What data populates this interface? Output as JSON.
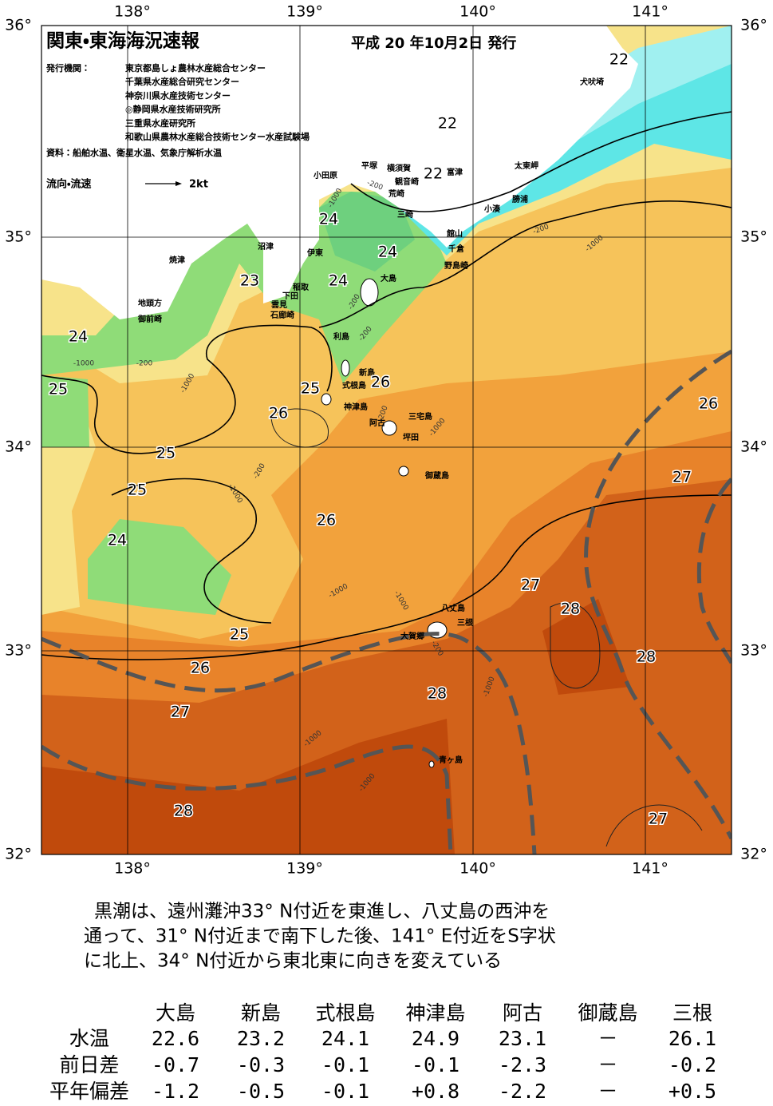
{
  "header": {
    "title": "関東・東海海況速報",
    "issue_date": "平成 20 年10月2日 発行",
    "issuer_label": "発行機関：",
    "issuers": [
      "東京都島しょ農林水産総合センター",
      "千葉県水産総合研究センター",
      "神奈川県水産技術センター",
      "◎静岡県水産技術研究所",
      "三重県水産研究所",
      "和歌山県農林水産総合技術センター水産試験場"
    ],
    "source": "資料：船舶水温、衛星水温、気象庁解析水温",
    "flow_legend": "流向・流速",
    "flow_speed": "2kt"
  },
  "map": {
    "longitude_labels": [
      "138°",
      "139°",
      "140°",
      "141°"
    ],
    "latitude_labels": [
      "36°",
      "35°",
      "34°",
      "33°",
      "32°"
    ],
    "place_names": [
      "犬吠埼",
      "太東岬",
      "勝浦",
      "小湊",
      "富津",
      "館山",
      "千倉",
      "野島崎",
      "三崎",
      "荒崎",
      "観音崎",
      "横須賀",
      "平塚",
      "小田原",
      "沼津",
      "伊東",
      "稲取",
      "下田",
      "雲見",
      "石廊崎",
      "焼津",
      "地頭方",
      "御前崎",
      "大島",
      "利島",
      "新島",
      "式根島",
      "神津島",
      "阿古",
      "三宅島",
      "坪田",
      "御蔵島",
      "八丈島",
      "三根",
      "大賀郷",
      "青ヶ島"
    ],
    "temperature_labels": [
      22,
      22,
      22,
      24,
      24,
      24,
      23,
      24,
      25,
      25,
      26,
      26,
      25,
      25,
      24,
      26,
      25,
      26,
      27,
      28,
      28,
      27,
      28,
      28,
      27,
      26,
      27
    ],
    "depth_labels": [
      "-1000",
      "-200",
      "-200",
      "-200",
      "-1000",
      "-200",
      "-1000",
      "-200",
      "-1000",
      "-1000",
      "-200",
      "-1000",
      "-1000",
      "-1000",
      "-200",
      "-1000",
      "-1000",
      "-1000",
      "-200"
    ]
  },
  "description": [
    "黒潮は、遠州灘沖33° N付近を東進し、八丈島の西沖を",
    "通って、31° N付近まで南下した後、141° E付近をS字状",
    "に北上、34° N付近から東北東に向きを変えている"
  ],
  "table": {
    "columns": [
      "大島",
      "新島",
      "式根島",
      "神津島",
      "阿古",
      "御蔵島",
      "三根"
    ],
    "rows": [
      {
        "label": "水温",
        "values": [
          "22.6",
          "23.2",
          "24.1",
          "24.9",
          "23.1",
          "－",
          "26.1"
        ]
      },
      {
        "label": "前日差",
        "values": [
          "-0.7",
          "-0.3",
          "-0.1",
          "-0.1",
          "-2.3",
          "－",
          "-0.2"
        ]
      },
      {
        "label": "平年偏差",
        "values": [
          "-1.2",
          "-0.5",
          "-0.1",
          "+0.8",
          "-2.2",
          "－",
          "+0.5"
        ]
      }
    ]
  }
}
